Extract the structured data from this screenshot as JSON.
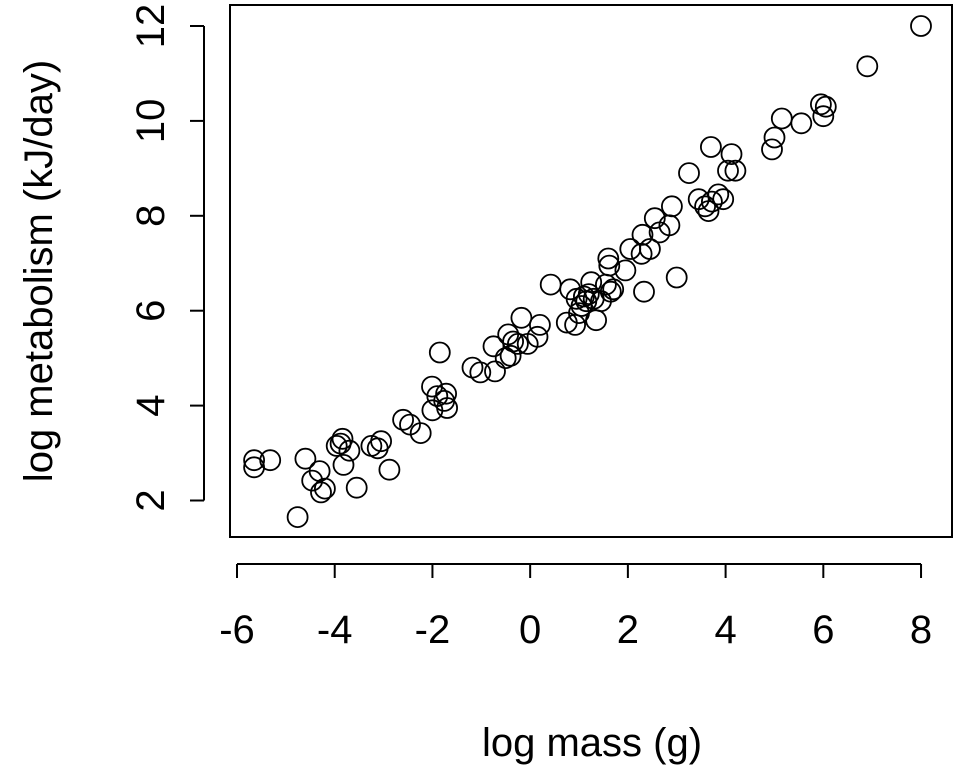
{
  "chart_data": {
    "type": "scatter",
    "title": "",
    "xlabel": "log mass (g)",
    "ylabel": "log metabolism (kJ/day)",
    "xlim": [
      -6,
      8
    ],
    "ylim": [
      2,
      12
    ],
    "x_ticks": [
      -6,
      -4,
      -2,
      0,
      2,
      4,
      6,
      8
    ],
    "x_tick_labels": [
      "-6",
      "-4",
      "-2",
      "0",
      "2",
      "4",
      "6",
      "8"
    ],
    "y_ticks": [
      2,
      4,
      6,
      8,
      10,
      12
    ],
    "y_tick_labels": [
      "2",
      "4",
      "6",
      "8",
      "10",
      "12"
    ],
    "marker": "open-circle",
    "grid": false,
    "legend": "none",
    "colors": {
      "stroke": "#000000",
      "background": "#ffffff"
    },
    "points": [
      [
        -5.65,
        2.85
      ],
      [
        -5.65,
        2.7
      ],
      [
        -5.32,
        2.85
      ],
      [
        -4.76,
        1.65
      ],
      [
        -4.6,
        2.88
      ],
      [
        -4.46,
        2.42
      ],
      [
        -4.31,
        2.62
      ],
      [
        -4.28,
        2.17
      ],
      [
        -4.2,
        2.25
      ],
      [
        -3.96,
        3.15
      ],
      [
        -3.88,
        3.2
      ],
      [
        -3.84,
        3.3
      ],
      [
        -3.82,
        2.75
      ],
      [
        -3.55,
        2.27
      ],
      [
        -3.7,
        3.05
      ],
      [
        -3.25,
        3.15
      ],
      [
        -3.12,
        3.1
      ],
      [
        -3.05,
        3.25
      ],
      [
        -2.88,
        2.65
      ],
      [
        -2.6,
        3.7
      ],
      [
        -2.46,
        3.6
      ],
      [
        -2.24,
        3.42
      ],
      [
        -2.01,
        4.4
      ],
      [
        -2.0,
        3.9
      ],
      [
        -1.9,
        4.2
      ],
      [
        -1.76,
        4.1
      ],
      [
        -1.72,
        4.25
      ],
      [
        -1.7,
        3.95
      ],
      [
        -1.85,
        5.12
      ],
      [
        -1.18,
        4.8
      ],
      [
        -1.02,
        4.7
      ],
      [
        -0.75,
        5.25
      ],
      [
        -0.72,
        4.72
      ],
      [
        -0.5,
        5.0
      ],
      [
        -0.45,
        5.5
      ],
      [
        -0.4,
        5.05
      ],
      [
        -0.35,
        5.35
      ],
      [
        -0.25,
        5.3
      ],
      [
        -0.18,
        5.85
      ],
      [
        -0.05,
        5.3
      ],
      [
        0.15,
        5.45
      ],
      [
        0.2,
        5.7
      ],
      [
        0.42,
        6.55
      ],
      [
        0.75,
        5.75
      ],
      [
        0.82,
        6.45
      ],
      [
        0.92,
        5.7
      ],
      [
        0.95,
        6.25
      ],
      [
        1.0,
        5.95
      ],
      [
        1.05,
        6.1
      ],
      [
        1.1,
        6.3
      ],
      [
        1.15,
        6.2
      ],
      [
        1.2,
        6.35
      ],
      [
        1.25,
        6.6
      ],
      [
        1.3,
        6.25
      ],
      [
        1.35,
        5.8
      ],
      [
        1.45,
        6.2
      ],
      [
        1.55,
        6.55
      ],
      [
        1.6,
        7.1
      ],
      [
        1.62,
        6.95
      ],
      [
        1.65,
        6.4
      ],
      [
        1.7,
        6.45
      ],
      [
        1.95,
        6.85
      ],
      [
        2.05,
        7.3
      ],
      [
        2.28,
        7.2
      ],
      [
        2.3,
        7.6
      ],
      [
        2.33,
        6.4
      ],
      [
        2.45,
        7.3
      ],
      [
        2.55,
        7.95
      ],
      [
        2.65,
        7.65
      ],
      [
        2.85,
        7.8
      ],
      [
        2.9,
        8.2
      ],
      [
        3.0,
        6.7
      ],
      [
        3.25,
        8.9
      ],
      [
        3.45,
        8.35
      ],
      [
        3.58,
        8.2
      ],
      [
        3.65,
        8.1
      ],
      [
        3.7,
        9.45
      ],
      [
        3.72,
        8.3
      ],
      [
        3.85,
        8.45
      ],
      [
        3.95,
        8.35
      ],
      [
        4.05,
        8.95
      ],
      [
        4.12,
        9.3
      ],
      [
        4.2,
        8.95
      ],
      [
        4.95,
        9.4
      ],
      [
        5.0,
        9.65
      ],
      [
        5.15,
        10.05
      ],
      [
        5.55,
        9.95
      ],
      [
        5.95,
        10.35
      ],
      [
        6.0,
        10.1
      ],
      [
        6.05,
        10.3
      ],
      [
        6.9,
        11.15
      ],
      [
        8.0,
        12.0
      ]
    ]
  }
}
